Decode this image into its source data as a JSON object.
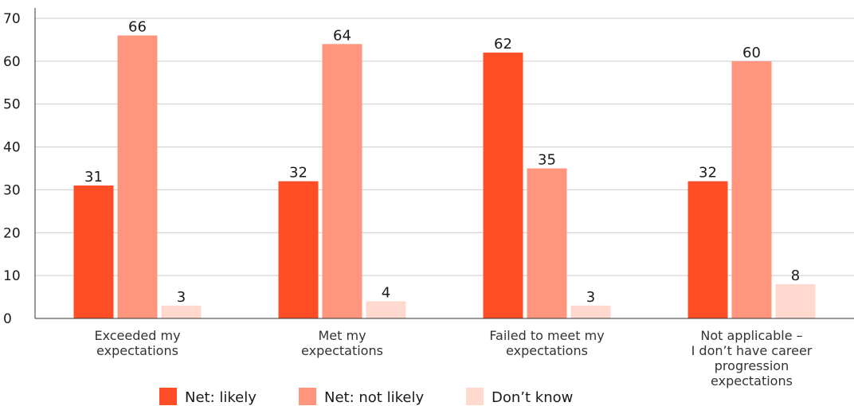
{
  "chart_data": {
    "type": "bar",
    "categories": [
      [
        "Exceeded my",
        "expectations"
      ],
      [
        "Met my",
        "expectations"
      ],
      [
        "Failed to meet my",
        "expectations"
      ],
      [
        "Not applicable –",
        "I don’t have career",
        "progression",
        "expectations"
      ]
    ],
    "series": [
      {
        "name": "Net: likely",
        "color": "#ff4d26",
        "values": [
          31,
          32,
          62,
          32
        ]
      },
      {
        "name": "Net: not likely",
        "color": "#ff957c",
        "values": [
          66,
          64,
          35,
          60
        ]
      },
      {
        "name": "Don’t know",
        "color": "#ffd9ce",
        "values": [
          3,
          4,
          3,
          8
        ]
      }
    ],
    "ylim": [
      0,
      70
    ],
    "yticks": [
      0,
      10,
      20,
      30,
      40,
      50,
      60,
      70
    ],
    "grid": true,
    "legend_position": "bottom"
  }
}
